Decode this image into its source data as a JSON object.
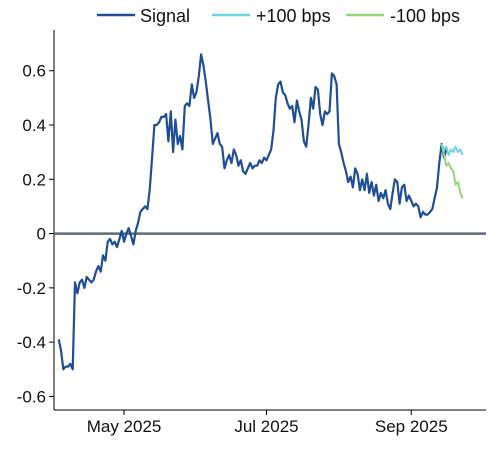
{
  "chart_data": {
    "type": "line",
    "title": "",
    "xlabel": "",
    "ylabel": "",
    "ylim": [
      -0.65,
      0.75
    ],
    "xlim": [
      "2025-04-01",
      "2025-10-03"
    ],
    "yticks": [
      0.6,
      0.4,
      0.2,
      0,
      -0.2,
      -0.4,
      -0.6
    ],
    "ytick_labels": [
      "0.6",
      "0.4",
      "0.2",
      "0",
      "-0.2",
      "-0.4",
      "-0.6"
    ],
    "xticks": [
      "2025-05-01",
      "2025-07-01",
      "2025-09-01"
    ],
    "xtick_labels": [
      "May 2025",
      "Jul 2025",
      "Sep 2025"
    ],
    "zero_line": true,
    "grid": false,
    "legend_position": "top",
    "series": [
      {
        "name": "Signal",
        "color": "#1f4e96",
        "points": [
          [
            "2025-04-03",
            -0.39
          ],
          [
            "2025-04-04",
            -0.43
          ],
          [
            "2025-04-05",
            -0.5
          ],
          [
            "2025-04-06",
            -0.49
          ],
          [
            "2025-04-07",
            -0.49
          ],
          [
            "2025-04-08",
            -0.48
          ],
          [
            "2025-04-09",
            -0.5
          ],
          [
            "2025-04-10",
            -0.18
          ],
          [
            "2025-04-11",
            -0.22
          ],
          [
            "2025-04-12",
            -0.18
          ],
          [
            "2025-04-13",
            -0.17
          ],
          [
            "2025-04-14",
            -0.2
          ],
          [
            "2025-04-15",
            -0.16
          ],
          [
            "2025-04-16",
            -0.17
          ],
          [
            "2025-04-17",
            -0.18
          ],
          [
            "2025-04-18",
            -0.17
          ],
          [
            "2025-04-19",
            -0.14
          ],
          [
            "2025-04-20",
            -0.12
          ],
          [
            "2025-04-21",
            -0.14
          ],
          [
            "2025-04-22",
            -0.08
          ],
          [
            "2025-04-23",
            -0.1
          ],
          [
            "2025-04-24",
            -0.03
          ],
          [
            "2025-04-25",
            -0.02
          ],
          [
            "2025-04-26",
            -0.04
          ],
          [
            "2025-04-27",
            -0.03
          ],
          [
            "2025-04-28",
            -0.05
          ],
          [
            "2025-04-29",
            -0.02
          ],
          [
            "2025-04-30",
            0.01
          ],
          [
            "2025-05-01",
            -0.03
          ],
          [
            "2025-05-02",
            0.0
          ],
          [
            "2025-05-03",
            0.02
          ],
          [
            "2025-05-04",
            -0.01
          ],
          [
            "2025-05-05",
            -0.04
          ],
          [
            "2025-05-06",
            0.01
          ],
          [
            "2025-05-07",
            0.04
          ],
          [
            "2025-05-08",
            0.08
          ],
          [
            "2025-05-09",
            0.09
          ],
          [
            "2025-05-10",
            0.1
          ],
          [
            "2025-05-11",
            0.09
          ],
          [
            "2025-05-12",
            0.16
          ],
          [
            "2025-05-13",
            0.28
          ],
          [
            "2025-05-14",
            0.4
          ],
          [
            "2025-05-15",
            0.4
          ],
          [
            "2025-05-16",
            0.41
          ],
          [
            "2025-05-17",
            0.43
          ],
          [
            "2025-05-18",
            0.43
          ],
          [
            "2025-05-19",
            0.44
          ],
          [
            "2025-05-20",
            0.34
          ],
          [
            "2025-05-21",
            0.45
          ],
          [
            "2025-05-22",
            0.3
          ],
          [
            "2025-05-23",
            0.42
          ],
          [
            "2025-05-24",
            0.33
          ],
          [
            "2025-05-25",
            0.36
          ],
          [
            "2025-05-26",
            0.31
          ],
          [
            "2025-05-27",
            0.47
          ],
          [
            "2025-05-28",
            0.48
          ],
          [
            "2025-05-29",
            0.47
          ],
          [
            "2025-05-30",
            0.55
          ],
          [
            "2025-05-31",
            0.5
          ],
          [
            "2025-06-01",
            0.52
          ],
          [
            "2025-06-02",
            0.58
          ],
          [
            "2025-06-03",
            0.66
          ],
          [
            "2025-06-04",
            0.62
          ],
          [
            "2025-06-05",
            0.56
          ],
          [
            "2025-06-06",
            0.49
          ],
          [
            "2025-06-07",
            0.42
          ],
          [
            "2025-06-08",
            0.33
          ],
          [
            "2025-06-09",
            0.35
          ],
          [
            "2025-06-10",
            0.37
          ],
          [
            "2025-06-11",
            0.33
          ],
          [
            "2025-06-12",
            0.32
          ],
          [
            "2025-06-13",
            0.24
          ],
          [
            "2025-06-14",
            0.27
          ],
          [
            "2025-06-15",
            0.29
          ],
          [
            "2025-06-16",
            0.26
          ],
          [
            "2025-06-17",
            0.31
          ],
          [
            "2025-06-18",
            0.29
          ],
          [
            "2025-06-19",
            0.25
          ],
          [
            "2025-06-20",
            0.27
          ],
          [
            "2025-06-21",
            0.23
          ],
          [
            "2025-06-22",
            0.22
          ],
          [
            "2025-06-23",
            0.24
          ],
          [
            "2025-06-24",
            0.26
          ],
          [
            "2025-06-25",
            0.24
          ],
          [
            "2025-06-26",
            0.25
          ],
          [
            "2025-06-27",
            0.25
          ],
          [
            "2025-06-28",
            0.27
          ],
          [
            "2025-06-29",
            0.26
          ],
          [
            "2025-06-30",
            0.28
          ],
          [
            "2025-07-01",
            0.27
          ],
          [
            "2025-07-02",
            0.29
          ],
          [
            "2025-07-03",
            0.31
          ],
          [
            "2025-07-04",
            0.38
          ],
          [
            "2025-07-05",
            0.5
          ],
          [
            "2025-07-06",
            0.55
          ],
          [
            "2025-07-07",
            0.56
          ],
          [
            "2025-07-08",
            0.52
          ],
          [
            "2025-07-09",
            0.51
          ],
          [
            "2025-07-10",
            0.48
          ],
          [
            "2025-07-11",
            0.46
          ],
          [
            "2025-07-12",
            0.47
          ],
          [
            "2025-07-13",
            0.41
          ],
          [
            "2025-07-14",
            0.49
          ],
          [
            "2025-07-15",
            0.45
          ],
          [
            "2025-07-16",
            0.42
          ],
          [
            "2025-07-17",
            0.34
          ],
          [
            "2025-07-18",
            0.32
          ],
          [
            "2025-07-19",
            0.4
          ],
          [
            "2025-07-20",
            0.5
          ],
          [
            "2025-07-21",
            0.46
          ],
          [
            "2025-07-22",
            0.54
          ],
          [
            "2025-07-23",
            0.53
          ],
          [
            "2025-07-24",
            0.44
          ],
          [
            "2025-07-25",
            0.4
          ],
          [
            "2025-07-26",
            0.45
          ],
          [
            "2025-07-27",
            0.44
          ],
          [
            "2025-07-28",
            0.45
          ],
          [
            "2025-07-29",
            0.59
          ],
          [
            "2025-07-30",
            0.58
          ],
          [
            "2025-07-31",
            0.55
          ],
          [
            "2025-08-01",
            0.33
          ],
          [
            "2025-08-02",
            0.3
          ],
          [
            "2025-08-03",
            0.26
          ],
          [
            "2025-08-04",
            0.23
          ],
          [
            "2025-08-05",
            0.19
          ],
          [
            "2025-08-06",
            0.21
          ],
          [
            "2025-08-07",
            0.17
          ],
          [
            "2025-08-08",
            0.24
          ],
          [
            "2025-08-09",
            0.22
          ],
          [
            "2025-08-10",
            0.16
          ],
          [
            "2025-08-11",
            0.2
          ],
          [
            "2025-08-12",
            0.16
          ],
          [
            "2025-08-13",
            0.22
          ],
          [
            "2025-08-14",
            0.15
          ],
          [
            "2025-08-15",
            0.19
          ],
          [
            "2025-08-16",
            0.14
          ],
          [
            "2025-08-17",
            0.18
          ],
          [
            "2025-08-18",
            0.12
          ],
          [
            "2025-08-19",
            0.15
          ],
          [
            "2025-08-20",
            0.13
          ],
          [
            "2025-08-21",
            0.16
          ],
          [
            "2025-08-22",
            0.11
          ],
          [
            "2025-08-23",
            0.09
          ],
          [
            "2025-08-24",
            0.15
          ],
          [
            "2025-08-25",
            0.2
          ],
          [
            "2025-08-26",
            0.19
          ],
          [
            "2025-08-27",
            0.11
          ],
          [
            "2025-08-28",
            0.17
          ],
          [
            "2025-08-29",
            0.18
          ],
          [
            "2025-08-30",
            0.12
          ],
          [
            "2025-08-31",
            0.14
          ],
          [
            "2025-09-01",
            0.12
          ],
          [
            "2025-09-02",
            0.1
          ],
          [
            "2025-09-03",
            0.11
          ],
          [
            "2025-09-04",
            0.1
          ],
          [
            "2025-09-05",
            0.06
          ],
          [
            "2025-09-06",
            0.08
          ],
          [
            "2025-09-07",
            0.07
          ],
          [
            "2025-09-08",
            0.07
          ],
          [
            "2025-09-09",
            0.08
          ],
          [
            "2025-09-10",
            0.09
          ],
          [
            "2025-09-11",
            0.13
          ],
          [
            "2025-09-12",
            0.17
          ],
          [
            "2025-09-13",
            0.26
          ],
          [
            "2025-09-14",
            0.33
          ],
          [
            "2025-09-15",
            0.28
          ],
          [
            "2025-09-16",
            0.31
          ]
        ]
      },
      {
        "name": "+100 bps",
        "color": "#6fd3e0",
        "points": [
          [
            "2025-09-14",
            0.33
          ],
          [
            "2025-09-15",
            0.31
          ],
          [
            "2025-09-16",
            0.32
          ],
          [
            "2025-09-17",
            0.29
          ],
          [
            "2025-09-18",
            0.31
          ],
          [
            "2025-09-19",
            0.3
          ],
          [
            "2025-09-20",
            0.32
          ],
          [
            "2025-09-21",
            0.3
          ],
          [
            "2025-09-22",
            0.31
          ],
          [
            "2025-09-23",
            0.29
          ]
        ]
      },
      {
        "name": "-100 bps",
        "color": "#93d67a",
        "points": [
          [
            "2025-09-14",
            0.33
          ],
          [
            "2025-09-15",
            0.29
          ],
          [
            "2025-09-16",
            0.25
          ],
          [
            "2025-09-17",
            0.26
          ],
          [
            "2025-09-18",
            0.24
          ],
          [
            "2025-09-19",
            0.23
          ],
          [
            "2025-09-20",
            0.18
          ],
          [
            "2025-09-21",
            0.19
          ],
          [
            "2025-09-22",
            0.15
          ],
          [
            "2025-09-23",
            0.13
          ]
        ]
      }
    ]
  }
}
